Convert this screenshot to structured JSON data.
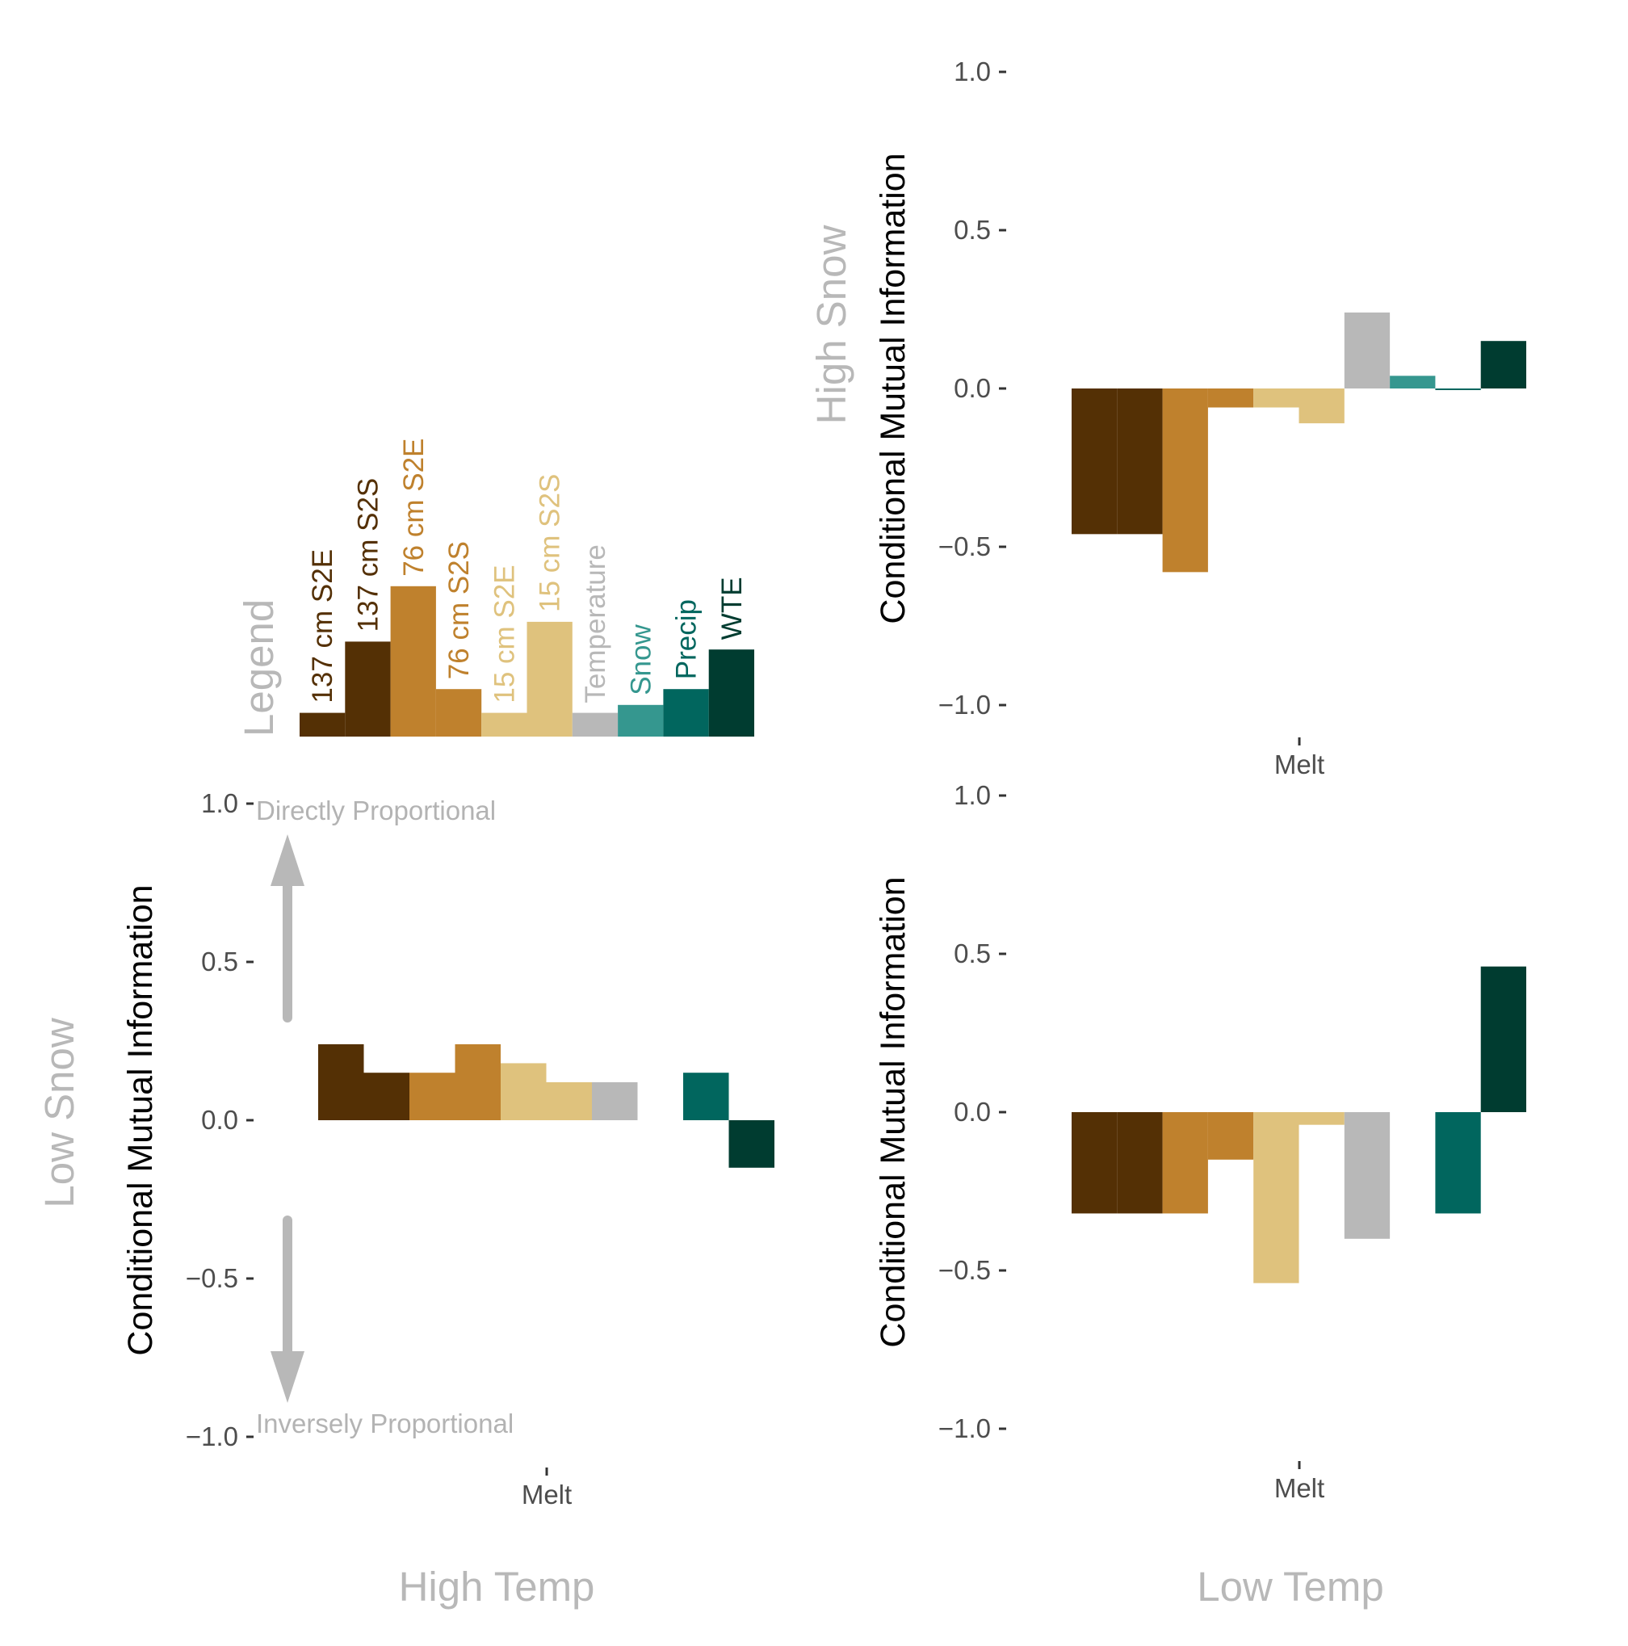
{
  "colors": {
    "137 cm S2E": "#543005",
    "137 cm S2S": "#543005",
    "76 cm S2E": "#bf812d",
    "76 cm S2S": "#bf812d",
    "15 cm S2E": "#dfc27d",
    "15 cm S2S": "#dfc27d",
    "Temperature": "#b8b8b8",
    "Snow": "#35978f",
    "Precip": "#01665e",
    "WTE": "#003c30"
  },
  "legend": {
    "title": "Legend",
    "series": [
      "137 cm S2E",
      "137 cm S2S",
      "76 cm S2E",
      "76 cm S2S",
      "15 cm S2E",
      "15 cm S2S",
      "Temperature",
      "Snow",
      "Precip",
      "WTE"
    ],
    "bar_values": [
      0.06,
      0.24,
      0.38,
      0.12,
      0.06,
      0.29,
      0.06,
      0.08,
      0.12,
      0.22
    ]
  },
  "annotations": {
    "top": "Directly Proportional",
    "bottom": "Inversely Proportional"
  },
  "chart_data": [
    {
      "type": "bar",
      "panel": "High Temp / Low Snow",
      "row_label": "Low Snow",
      "col_label": "High Temp",
      "xlabel": "",
      "ylabel": "Conditional Mutual Information",
      "categories": [
        "Melt"
      ],
      "ylim": [
        -1.0,
        1.0
      ],
      "yticks": [
        "1.0",
        "0.5",
        "0.0",
        "−0.5",
        "−1.0"
      ],
      "series": [
        {
          "name": "137 cm S2E",
          "values": [
            0.24
          ]
        },
        {
          "name": "137 cm S2S",
          "values": [
            0.15
          ]
        },
        {
          "name": "76 cm S2E",
          "values": [
            0.15
          ]
        },
        {
          "name": "76 cm S2S",
          "values": [
            0.24
          ]
        },
        {
          "name": "15 cm S2E",
          "values": [
            0.18
          ]
        },
        {
          "name": "15 cm S2S",
          "values": [
            0.12
          ]
        },
        {
          "name": "Temperature",
          "values": [
            0.12
          ]
        },
        {
          "name": "Snow",
          "values": [
            0.0
          ]
        },
        {
          "name": "Precip",
          "values": [
            0.15
          ]
        },
        {
          "name": "WTE",
          "values": [
            -0.15
          ]
        }
      ]
    },
    {
      "type": "bar",
      "panel": "Low Temp / High Snow",
      "row_label": "High Snow",
      "col_label": "",
      "xlabel": "",
      "ylabel": "Conditional Mutual Information",
      "categories": [
        "Melt"
      ],
      "ylim": [
        -1.0,
        1.0
      ],
      "yticks": [
        "1.0",
        "0.5",
        "0.0",
        "−0.5",
        "−1.0"
      ],
      "series": [
        {
          "name": "137 cm S2E",
          "values": [
            -0.46
          ]
        },
        {
          "name": "137 cm S2S",
          "values": [
            -0.46
          ]
        },
        {
          "name": "76 cm S2E",
          "values": [
            -0.58
          ]
        },
        {
          "name": "76 cm S2S",
          "values": [
            -0.06
          ]
        },
        {
          "name": "15 cm S2E",
          "values": [
            -0.06
          ]
        },
        {
          "name": "15 cm S2S",
          "values": [
            -0.11
          ]
        },
        {
          "name": "Temperature",
          "values": [
            0.24
          ]
        },
        {
          "name": "Snow",
          "values": [
            0.04
          ]
        },
        {
          "name": "Precip",
          "values": [
            -0.005
          ]
        },
        {
          "name": "WTE",
          "values": [
            0.15
          ]
        }
      ]
    },
    {
      "type": "bar",
      "panel": "Low Temp / Low Snow",
      "row_label": "",
      "col_label": "Low Temp",
      "xlabel": "",
      "ylabel": "Conditional Mutual Information",
      "categories": [
        "Melt"
      ],
      "ylim": [
        -1.0,
        1.0
      ],
      "yticks": [
        "1.0",
        "0.5",
        "0.0",
        "−0.5",
        "−1.0"
      ],
      "series": [
        {
          "name": "137 cm S2E",
          "values": [
            -0.32
          ]
        },
        {
          "name": "137 cm S2S",
          "values": [
            -0.32
          ]
        },
        {
          "name": "76 cm S2E",
          "values": [
            -0.32
          ]
        },
        {
          "name": "76 cm S2S",
          "values": [
            -0.15
          ]
        },
        {
          "name": "15 cm S2E",
          "values": [
            -0.54
          ]
        },
        {
          "name": "15 cm S2S",
          "values": [
            -0.04
          ]
        },
        {
          "name": "Temperature",
          "values": [
            -0.4
          ]
        },
        {
          "name": "Snow",
          "values": [
            0.0
          ]
        },
        {
          "name": "Precip",
          "values": [
            -0.32
          ]
        },
        {
          "name": "WTE",
          "values": [
            0.46
          ]
        }
      ]
    }
  ]
}
